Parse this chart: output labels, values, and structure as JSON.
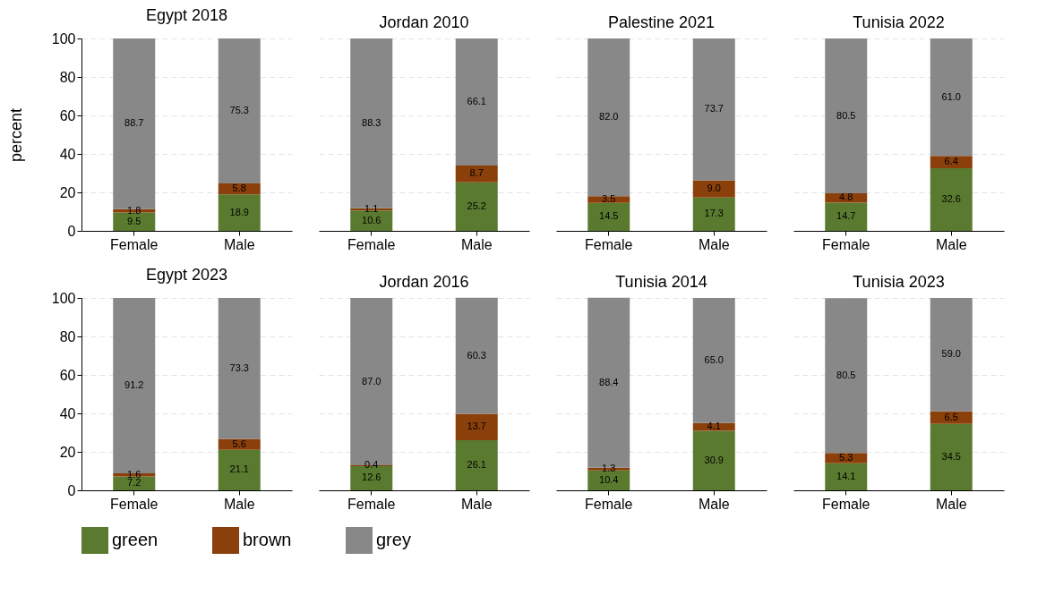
{
  "chart_data": [
    {
      "type": "bar",
      "stacked": true,
      "title": "Egypt 2018",
      "ylabel": "percent",
      "categories": [
        "Female",
        "Male"
      ],
      "ylim": [
        0,
        100
      ],
      "yticks": [
        0,
        20,
        40,
        60,
        80,
        100
      ],
      "grid": "y",
      "legend": "bottom",
      "series": [
        {
          "name": "green",
          "color": "#5a7b2f",
          "values": [
            9.5,
            18.9
          ],
          "value_labels": [
            "9.5",
            "18.9"
          ]
        },
        {
          "name": "brown",
          "color": "#8b3f0a",
          "values": [
            1.8,
            5.8
          ],
          "value_labels": [
            "1.8",
            "5.8"
          ]
        },
        {
          "name": "grey",
          "color": "#888888",
          "values": [
            88.7,
            75.3
          ],
          "value_labels": [
            "88.7",
            "75.3"
          ]
        }
      ]
    },
    {
      "type": "bar",
      "stacked": true,
      "title": "Jordan 2010",
      "categories": [
        "Female",
        "Male"
      ],
      "ylim": [
        0,
        100
      ],
      "yticks": [
        0,
        20,
        40,
        60,
        80,
        100
      ],
      "grid": "y",
      "legend": "bottom",
      "tick_labels": "x",
      "series": [
        {
          "name": "green",
          "color": "#5a7b2f",
          "values": [
            10.6,
            25.2
          ],
          "value_labels": [
            "10.6",
            "25.2"
          ]
        },
        {
          "name": "brown",
          "color": "#8b3f0a",
          "values": [
            1.1,
            8.7
          ],
          "value_labels": [
            "1.1",
            "8.7"
          ]
        },
        {
          "name": "grey",
          "color": "#888888",
          "values": [
            88.3,
            66.1
          ],
          "value_labels": [
            "88.3",
            "66.1"
          ]
        }
      ]
    },
    {
      "type": "bar",
      "stacked": true,
      "title": "Palestine 2021",
      "categories": [
        "Female",
        "Male"
      ],
      "ylim": [
        0,
        100
      ],
      "yticks": [
        0,
        20,
        40,
        60,
        80,
        100
      ],
      "grid": "y",
      "legend": "bottom",
      "tick_labels": "x",
      "series": [
        {
          "name": "green",
          "color": "#5a7b2f",
          "values": [
            14.5,
            17.3
          ],
          "value_labels": [
            "14.5",
            "17.3"
          ]
        },
        {
          "name": "brown",
          "color": "#8b3f0a",
          "values": [
            3.5,
            9.0
          ],
          "value_labels": [
            "3.5",
            "9.0"
          ]
        },
        {
          "name": "grey",
          "color": "#888888",
          "values": [
            82.0,
            73.7
          ],
          "value_labels": [
            "82.0",
            "73.7"
          ]
        }
      ]
    },
    {
      "type": "bar",
      "stacked": true,
      "title": "Tunisia 2022",
      "categories": [
        "Female",
        "Male"
      ],
      "ylim": [
        0,
        100
      ],
      "yticks": [
        0,
        20,
        40,
        60,
        80,
        100
      ],
      "grid": "y",
      "legend": "bottom",
      "tick_labels": "x",
      "series": [
        {
          "name": "green",
          "color": "#5a7b2f",
          "values": [
            14.7,
            32.6
          ],
          "value_labels": [
            "14.7",
            "32.6"
          ]
        },
        {
          "name": "brown",
          "color": "#8b3f0a",
          "values": [
            4.8,
            6.4
          ],
          "value_labels": [
            "4.8",
            "6.4"
          ]
        },
        {
          "name": "grey",
          "color": "#888888",
          "values": [
            80.5,
            61.0
          ],
          "value_labels": [
            "80.5",
            "61.0"
          ]
        }
      ]
    },
    {
      "type": "bar",
      "stacked": true,
      "title": "Egypt 2023",
      "categories": [
        "Female",
        "Male"
      ],
      "ylim": [
        0,
        100
      ],
      "yticks": [
        0,
        20,
        40,
        60,
        80,
        100
      ],
      "grid": "y",
      "legend": "bottom",
      "series": [
        {
          "name": "green",
          "color": "#5a7b2f",
          "values": [
            7.2,
            21.1
          ],
          "value_labels": [
            "7.2",
            "21.1"
          ]
        },
        {
          "name": "brown",
          "color": "#8b3f0a",
          "values": [
            1.6,
            5.6
          ],
          "value_labels": [
            "1.6",
            "5.6"
          ]
        },
        {
          "name": "grey",
          "color": "#888888",
          "values": [
            91.2,
            73.3
          ],
          "value_labels": [
            "91.2",
            "73.3"
          ]
        }
      ]
    },
    {
      "type": "bar",
      "stacked": true,
      "title": "Jordan 2016",
      "categories": [
        "Female",
        "Male"
      ],
      "ylim": [
        0,
        100
      ],
      "yticks": [
        0,
        20,
        40,
        60,
        80,
        100
      ],
      "grid": "y",
      "legend": "bottom",
      "tick_labels": "x",
      "series": [
        {
          "name": "green",
          "color": "#5a7b2f",
          "values": [
            12.6,
            26.1
          ],
          "value_labels": [
            "12.6",
            "26.1"
          ]
        },
        {
          "name": "brown",
          "color": "#8b3f0a",
          "values": [
            0.4,
            13.7
          ],
          "value_labels": [
            "0.4",
            "13.7"
          ]
        },
        {
          "name": "grey",
          "color": "#888888",
          "values": [
            87.0,
            60.3
          ],
          "value_labels": [
            "87.0",
            "60.3"
          ]
        }
      ]
    },
    {
      "type": "bar",
      "stacked": true,
      "title": "Tunisia 2014",
      "categories": [
        "Female",
        "Male"
      ],
      "ylim": [
        0,
        100
      ],
      "yticks": [
        0,
        20,
        40,
        60,
        80,
        100
      ],
      "grid": "y",
      "legend": "bottom",
      "tick_labels": "x",
      "series": [
        {
          "name": "green",
          "color": "#5a7b2f",
          "values": [
            10.4,
            30.9
          ],
          "value_labels": [
            "10.4",
            "30.9"
          ]
        },
        {
          "name": "brown",
          "color": "#8b3f0a",
          "values": [
            1.3,
            4.1
          ],
          "value_labels": [
            "1.3",
            "4.1"
          ]
        },
        {
          "name": "grey",
          "color": "#888888",
          "values": [
            88.4,
            65.0
          ],
          "value_labels": [
            "88.4",
            "65.0"
          ]
        }
      ]
    },
    {
      "type": "bar",
      "stacked": true,
      "title": "Tunisia 2023",
      "categories": [
        "Female",
        "Male"
      ],
      "ylim": [
        0,
        100
      ],
      "yticks": [
        0,
        20,
        40,
        60,
        80,
        100
      ],
      "grid": "y",
      "legend": "bottom",
      "tick_labels": "x",
      "series": [
        {
          "name": "green",
          "color": "#5a7b2f",
          "values": [
            14.1,
            34.5
          ],
          "value_labels": [
            "14.1",
            "34.5"
          ]
        },
        {
          "name": "brown",
          "color": "#8b3f0a",
          "values": [
            5.3,
            6.5
          ],
          "value_labels": [
            "5.3",
            "6.5"
          ]
        },
        {
          "name": "grey",
          "color": "#888888",
          "values": [
            80.5,
            59.0
          ],
          "value_labels": [
            "80.5",
            "59.0"
          ]
        }
      ]
    }
  ]
}
